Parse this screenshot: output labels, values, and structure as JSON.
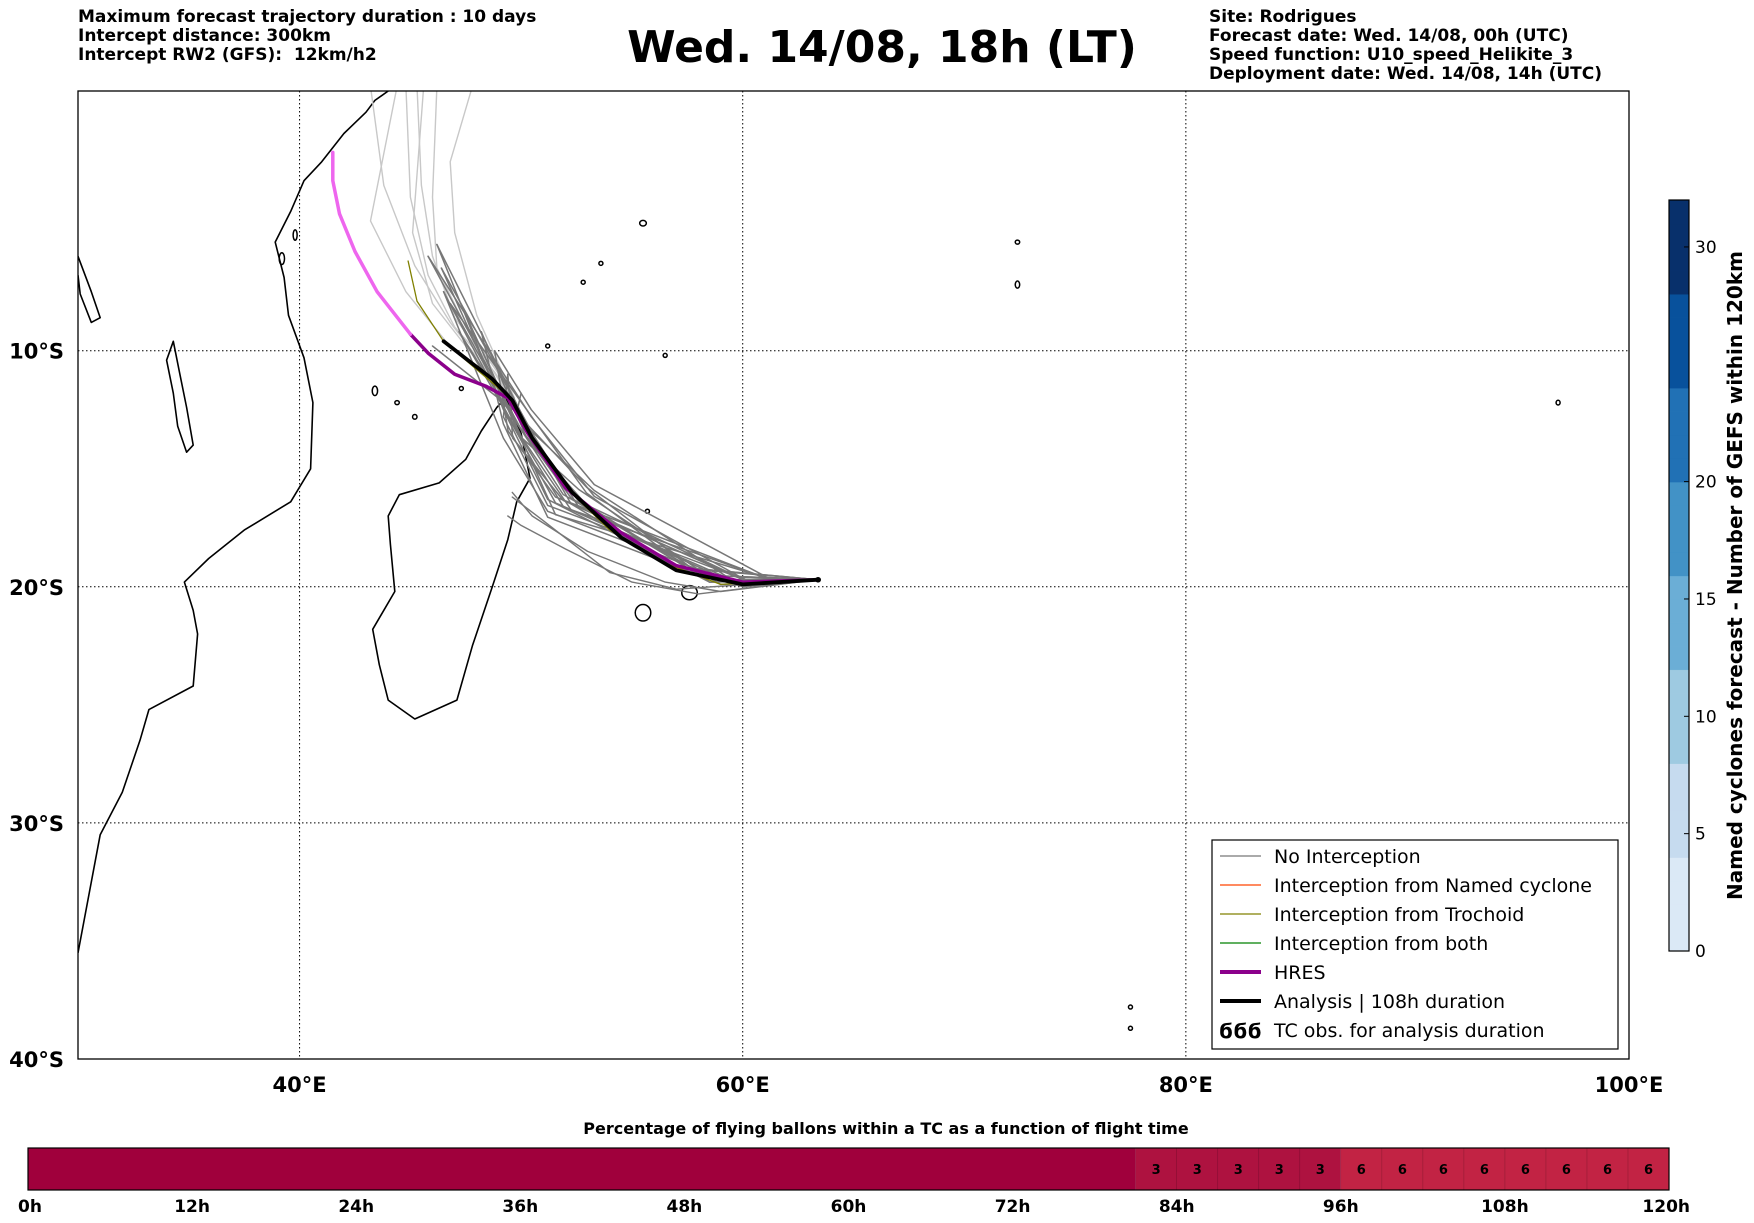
{
  "header": {
    "left": [
      "Maximum forecast trajectory duration : 10 days",
      "Intercept distance: 300km",
      "Intercept RW2 (GFS):  12km/h2"
    ],
    "title": "Wed. 14/08, 18h (LT)",
    "right": [
      "Site: Rodrigues",
      "Forecast date: Wed. 14/08, 00h (UTC)",
      "Speed function: U10_speed_Helikite_3",
      "Deployment date: Wed. 14/08, 14h (UTC)"
    ]
  },
  "map": {
    "lon_range": [
      30,
      100
    ],
    "lat_range": [
      -40,
      1
    ],
    "lon_labels": [
      {
        "lon": 40,
        "text": "40°E"
      },
      {
        "lon": 60,
        "text": "60°E"
      },
      {
        "lon": 80,
        "text": "80°E"
      },
      {
        "lon": 100,
        "text": "100°E"
      }
    ],
    "lat_labels": [
      {
        "lat": -10,
        "text": "10°S"
      },
      {
        "lat": -20,
        "text": "20°S"
      },
      {
        "lat": -30,
        "text": "30°S"
      },
      {
        "lat": -40,
        "text": "40°S"
      }
    ],
    "launch_site": {
      "lon": 63.4,
      "lat": -19.7
    },
    "colors": {
      "no_interception": "#777777",
      "hres": "#8b008b",
      "hres_late": "#ee66ee",
      "analysis": "#000000",
      "trochoid": "#808000"
    }
  },
  "legend": {
    "items": [
      {
        "label": "No Interception",
        "color": "#777777",
        "style": "thin"
      },
      {
        "label": "Interception from Named cyclone",
        "color": "#ff4500",
        "style": "thin"
      },
      {
        "label": "Interception from Trochoid",
        "color": "#808000",
        "style": "thin"
      },
      {
        "label": "Interception from both",
        "color": "#008000",
        "style": "thin"
      },
      {
        "label": "HRES",
        "color": "#8b008b",
        "style": "thick"
      },
      {
        "label": "Analysis | 108h duration",
        "color": "#000000",
        "style": "thick"
      },
      {
        "label": "TC obs. for analysis duration",
        "color": "#000000",
        "style": "symbol",
        "symbol": "ϭϭϭ"
      }
    ]
  },
  "colorbar": {
    "label": "Named cyclones forecast - Number of GEFS within 120km",
    "range": [
      0,
      32
    ],
    "ticks": [
      0,
      5,
      10,
      15,
      20,
      30
    ],
    "colors": [
      "#dbe9f6",
      "#c6dbef",
      "#9ecae1",
      "#6baed6",
      "#4292c6",
      "#2171b5",
      "#08519c",
      "#08306b"
    ]
  },
  "bottom_bar": {
    "title": "Percentage of flying ballons within a TC as a function of flight time",
    "hours": 120,
    "tick_labels": [
      "0h",
      "12h",
      "24h",
      "36h",
      "48h",
      "60h",
      "72h",
      "84h",
      "96h",
      "108h",
      "120h"
    ],
    "segments": [
      {
        "from": 0,
        "to": 81,
        "value": 0
      },
      {
        "from": 81,
        "to": 96,
        "value": 3
      },
      {
        "from": 96,
        "to": 120,
        "value": 6
      }
    ],
    "cell_hours": 3,
    "colors": {
      "0": "#a0003c",
      "3": "#ae1240",
      "6": "#c22344"
    }
  }
}
